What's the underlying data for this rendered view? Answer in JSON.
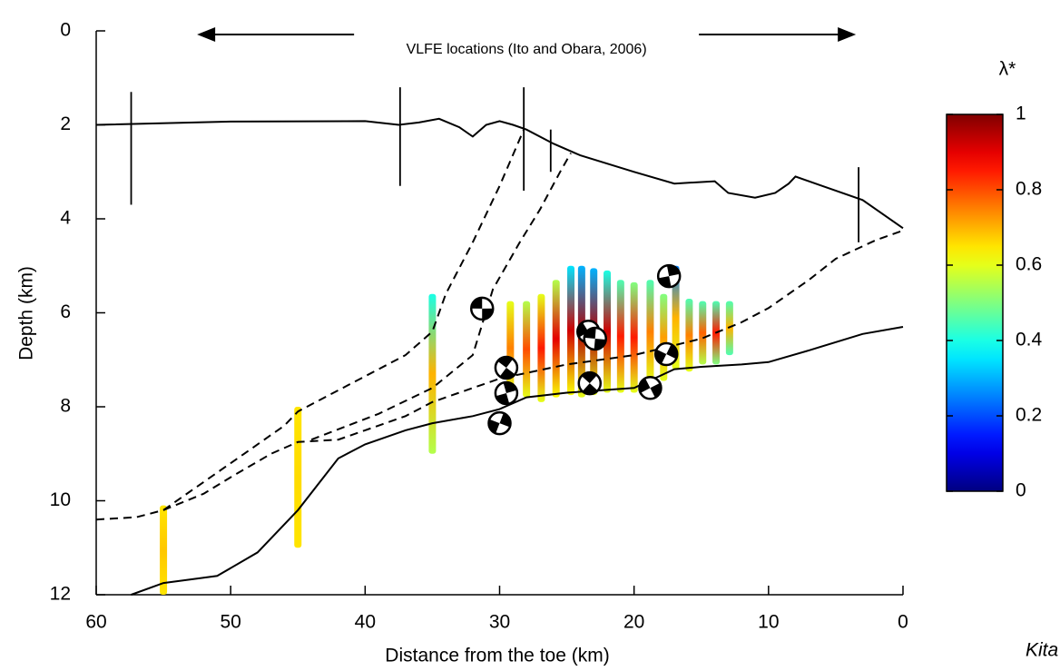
{
  "chart_data": {
    "type": "cross-section",
    "xlabel": "Distance from the toe (km)",
    "ylabel": "Depth (km)",
    "xlim": [
      60,
      0
    ],
    "ylim": [
      12,
      0
    ],
    "xticks": [
      60,
      50,
      40,
      30,
      20,
      10,
      0
    ],
    "yticks": [
      0,
      2,
      4,
      6,
      8,
      10,
      12
    ],
    "annotation": {
      "text": "VLFE locations (Ito and Obara, 2006)",
      "x": [
        52.5,
        3.5
      ]
    },
    "series": [
      {
        "style": "solid",
        "color": "#000000",
        "x": [
          60,
          50,
          40,
          37.5,
          36,
          34.5,
          33,
          32,
          31,
          30,
          29,
          28,
          26,
          24,
          20,
          17,
          14,
          13,
          11,
          9.5,
          8.5,
          8,
          6,
          3,
          0
        ],
        "y": [
          2.0,
          1.93,
          1.92,
          2.0,
          1.95,
          1.87,
          2.05,
          2.25,
          2.0,
          1.92,
          2.0,
          2.1,
          2.4,
          2.65,
          3.0,
          3.25,
          3.2,
          3.45,
          3.55,
          3.45,
          3.25,
          3.1,
          3.3,
          3.6,
          4.2
        ]
      },
      {
        "style": "solid",
        "color": "#000000",
        "x": [
          57.4,
          55,
          51,
          48,
          45,
          42,
          40,
          37,
          35,
          32,
          30,
          28,
          25,
          20,
          17,
          15,
          12,
          10,
          7,
          3,
          0
        ],
        "y": [
          12,
          11.75,
          11.6,
          11.1,
          10.2,
          9.1,
          8.8,
          8.5,
          8.35,
          8.2,
          8.05,
          7.8,
          7.7,
          7.6,
          7.2,
          7.15,
          7.1,
          7.05,
          6.8,
          6.45,
          6.3
        ]
      },
      {
        "style": "dashed",
        "color": "#000000",
        "x": [
          60,
          57,
          55,
          52,
          50,
          47,
          45,
          42,
          40,
          37,
          35,
          30,
          25,
          20,
          15,
          12,
          10,
          7,
          5,
          2,
          0
        ],
        "y": [
          10.4,
          10.35,
          10.2,
          9.85,
          9.5,
          9.0,
          8.75,
          8.7,
          8.5,
          8.2,
          7.9,
          7.4,
          7.1,
          6.9,
          6.55,
          6.2,
          5.9,
          5.3,
          4.85,
          4.45,
          4.25
        ]
      },
      {
        "style": "dashed",
        "color": "#000000",
        "x": [
          55,
          52,
          49,
          46,
          45,
          43,
          40,
          37,
          35,
          34,
          32,
          30,
          28.2
        ],
        "y": [
          10.2,
          9.6,
          9.0,
          8.4,
          8.1,
          7.8,
          7.35,
          6.9,
          6.4,
          5.6,
          4.5,
          3.3,
          2.1
        ]
      },
      {
        "style": "dashed",
        "color": "#000000",
        "x": [
          44,
          39,
          35,
          32,
          30.5,
          28.5,
          27,
          25.5,
          24.7
        ],
        "y": [
          8.7,
          8.15,
          7.6,
          6.9,
          5.5,
          4.5,
          3.8,
          3.0,
          2.6
        ]
      }
    ],
    "sites": {
      "x": [
        57.4,
        37.4,
        28.2,
        26.2,
        3.3
      ],
      "top": [
        1.3,
        1.2,
        1.2,
        2.1,
        2.9
      ],
      "bottom": [
        3.7,
        3.3,
        3.4,
        3.0,
        4.5
      ]
    },
    "strips": {
      "x": [
        55,
        45,
        35,
        29.2,
        28.0,
        26.9,
        25.8,
        24.7,
        23.9,
        23.0,
        22.0,
        21.0,
        20.0,
        18.8,
        17.8,
        16.9,
        15.9,
        14.9,
        13.9,
        12.9
      ],
      "top": [
        10.1,
        8.0,
        5.6,
        5.75,
        5.75,
        5.6,
        5.3,
        5.0,
        5.0,
        5.05,
        5.1,
        5.3,
        5.35,
        5.3,
        5.6,
        5.0,
        5.7,
        5.75,
        5.75,
        5.75
      ],
      "bottom": [
        12.0,
        11.0,
        9.0,
        7.75,
        7.8,
        7.9,
        7.8,
        7.75,
        7.8,
        7.75,
        7.7,
        7.7,
        7.7,
        7.5,
        7.45,
        7.2,
        7.25,
        7.1,
        7.1,
        6.9
      ],
      "lambda_top": [
        0.65,
        0.65,
        0.4,
        0.6,
        0.55,
        0.6,
        0.55,
        0.35,
        0.3,
        0.3,
        0.4,
        0.45,
        0.5,
        0.45,
        0.5,
        0.25,
        0.45,
        0.45,
        0.45,
        0.45
      ],
      "lambda_mid": [
        0.68,
        0.66,
        0.7,
        0.75,
        0.8,
        0.85,
        0.9,
        0.92,
        0.95,
        0.95,
        0.92,
        0.85,
        0.85,
        0.75,
        0.72,
        0.7,
        0.75,
        0.78,
        0.85,
        0.7
      ],
      "lambda_bottom": [
        0.65,
        0.65,
        0.55,
        0.6,
        0.6,
        0.6,
        0.62,
        0.62,
        0.6,
        0.6,
        0.6,
        0.6,
        0.6,
        0.6,
        0.6,
        0.6,
        0.6,
        0.55,
        0.5,
        0.45
      ]
    },
    "focal_mechanisms": {
      "x": [
        31.3,
        29.5,
        29.5,
        30.0,
        23.4,
        22.9,
        23.3,
        17.4,
        17.6,
        18.8
      ],
      "y": [
        5.91,
        7.17,
        7.71,
        8.35,
        6.4,
        6.55,
        7.5,
        5.22,
        6.88,
        7.6
      ]
    },
    "colorbar": {
      "label": "λ*",
      "colormap": "jet",
      "clim": [
        0,
        1
      ],
      "ticks": [
        0,
        0.2,
        0.4,
        0.6,
        0.8,
        1
      ]
    },
    "credit": "Kita"
  }
}
